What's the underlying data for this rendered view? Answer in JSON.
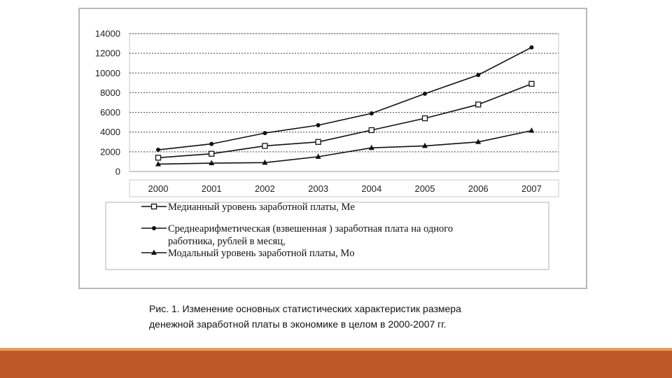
{
  "caption": {
    "line1": "Рис. 1. Изменение основных статистических характеристик размера",
    "line2": "денежной заработной платы в экономике в целом в 2000-2007 гг."
  },
  "colors": {
    "bottom_bar": "#c0572b",
    "bottom_bar_accent": "#e0a15a",
    "series": "#111111",
    "grid": "#444444"
  },
  "chart_data": {
    "type": "line",
    "title": "",
    "xlabel": "",
    "ylabel": "",
    "categories": [
      "2000",
      "2001",
      "2002",
      "2003",
      "2004",
      "2005",
      "2006",
      "2007"
    ],
    "ylim": [
      0,
      14000
    ],
    "yticks": [
      "0",
      "2000",
      "4000",
      "6000",
      "8000",
      "10000",
      "12000",
      "14000"
    ],
    "grid": "horizontal dashed",
    "legend_position": "bottom",
    "series": [
      {
        "name": "Медианный уровень заработной платы, Me",
        "marker": "open-square",
        "values": [
          1400,
          1800,
          2600,
          3000,
          4200,
          5400,
          6800,
          8900
        ]
      },
      {
        "name": "Среднеарифметическая (взвешенная ) заработная плата на одного работника, рублей в месяц,",
        "name_lines": [
          "Среднеарифметическая (взвешенная ) заработная плата на одного",
          "работника, рублей в месяц,"
        ],
        "marker": "dot",
        "values": [
          2200,
          2800,
          3900,
          4700,
          5900,
          7900,
          9800,
          12600
        ]
      },
      {
        "name": "Модальный уровень заработной платы, Mo",
        "marker": "triangle",
        "values": [
          750,
          850,
          900,
          1500,
          2400,
          2600,
          3000,
          4150
        ]
      }
    ]
  }
}
